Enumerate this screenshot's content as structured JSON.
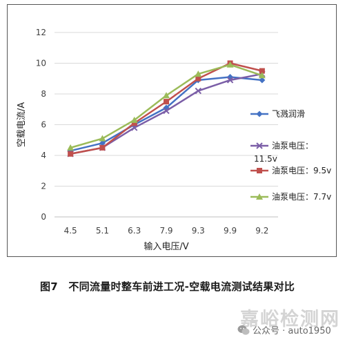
{
  "chart_data": {
    "type": "line",
    "categories": [
      "4.5",
      "5.1",
      "6.3",
      "7.9",
      "9.3",
      "9.9",
      "9.2"
    ],
    "xlabel": "输入电压/V",
    "ylabel": "空载电流/A",
    "ylim": [
      0,
      12
    ],
    "yticks": [
      0,
      2,
      4,
      6,
      8,
      10,
      12
    ],
    "grid": true,
    "legend_position": "right",
    "series": [
      {
        "name": "飞溅润滑",
        "color": "#4472c4",
        "marker": "diamond",
        "values": [
          4.3,
          4.8,
          6.0,
          7.1,
          8.9,
          9.1,
          8.9
        ]
      },
      {
        "name": "油泵电压：11.5v",
        "color": "#7b5ea7",
        "marker": "x",
        "values": [
          4.1,
          4.5,
          5.8,
          6.9,
          8.2,
          8.9,
          9.3
        ]
      },
      {
        "name": "油泵电压：9.5v",
        "color": "#c0504d",
        "marker": "square",
        "values": [
          4.1,
          4.5,
          6.1,
          7.5,
          9.0,
          10.0,
          9.5
        ]
      },
      {
        "name": "油泵电压：7.7v",
        "color": "#9bbb59",
        "marker": "triangle",
        "values": [
          4.5,
          5.1,
          6.3,
          7.9,
          9.3,
          9.9,
          9.2
        ]
      }
    ]
  },
  "caption": "图7　不同流量时整车前进工况-空载电流测试结果对比",
  "watermark": {
    "main": "嘉峪检测网",
    "sub": "公众号 · auto1950"
  }
}
